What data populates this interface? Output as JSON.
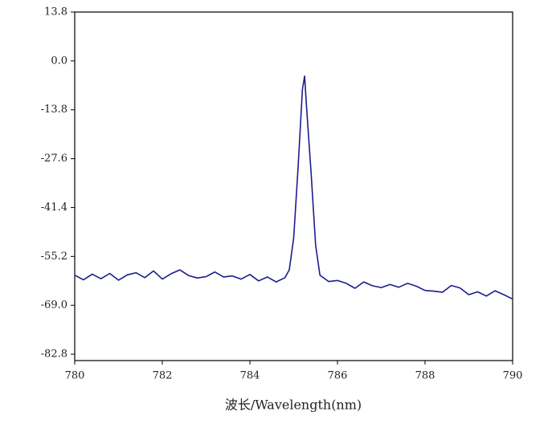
{
  "chart_data": {
    "type": "line",
    "x_label": "波长/Wavelength(nm)",
    "x": [
      780.0,
      780.2,
      780.4,
      780.6,
      780.8,
      781.0,
      781.2,
      781.4,
      781.6,
      781.8,
      782.0,
      782.2,
      782.4,
      782.6,
      782.8,
      783.0,
      783.2,
      783.4,
      783.6,
      783.8,
      784.0,
      784.2,
      784.4,
      784.6,
      784.8,
      784.9,
      785.0,
      785.1,
      785.2,
      785.25,
      785.3,
      785.4,
      785.5,
      785.6,
      785.8,
      786.0,
      786.2,
      786.4,
      786.6,
      786.8,
      787.0,
      787.2,
      787.4,
      787.6,
      787.8,
      788.0,
      788.2,
      788.4,
      788.6,
      788.8,
      789.0,
      789.2,
      789.4,
      789.6,
      789.8,
      790.0
    ],
    "series": [
      {
        "color": "#1c1c8f",
        "values": [
          -60.5,
          -61.8,
          -60.2,
          -61.5,
          -60.0,
          -61.9,
          -60.4,
          -59.8,
          -61.2,
          -59.3,
          -61.6,
          -60.1,
          -59.0,
          -60.6,
          -61.3,
          -60.9,
          -59.6,
          -61.0,
          -60.7,
          -61.6,
          -60.3,
          -62.1,
          -61.0,
          -62.4,
          -61.2,
          -59.0,
          -50.0,
          -30.0,
          -8.0,
          -4.3,
          -14.0,
          -32.0,
          -52.0,
          -60.5,
          -62.3,
          -62.0,
          -62.8,
          -64.2,
          -62.4,
          -63.5,
          -64.0,
          -63.1,
          -63.9,
          -62.8,
          -63.6,
          -64.8,
          -65.0,
          -65.3,
          -63.4,
          -64.1,
          -66.0,
          -65.2,
          -66.4,
          -64.9,
          -66.0,
          -67.2
        ]
      }
    ],
    "xlim": [
      780,
      790
    ],
    "xticks": [
      780,
      782,
      784,
      786,
      788,
      790
    ],
    "ylim": [
      -84.6,
      13.8
    ],
    "yticks": [
      13.8,
      {
        "value": 0,
        "label": "0.0"
      },
      -13.8,
      -27.6,
      -41.4,
      -55.2,
      {
        "value": -69,
        "label": "-69.0"
      },
      -82.8
    ]
  }
}
